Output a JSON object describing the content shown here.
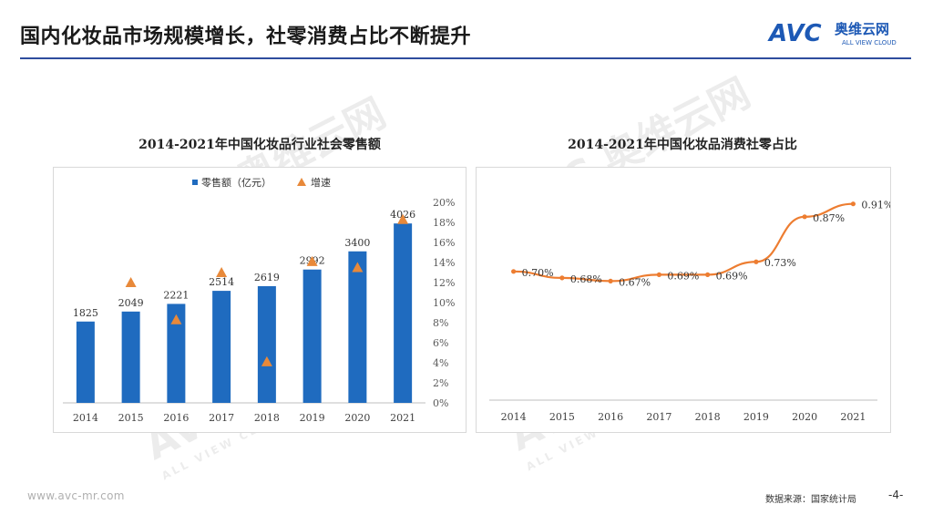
{
  "header": {
    "title": "国内化妆品市场规模增长，社零消费占比不断提升",
    "logo": {
      "mark": "AVC",
      "cn": "奥维云网",
      "en": "ALL VIEW CLOUD"
    }
  },
  "footer": {
    "url": "www.avc-mr.com",
    "source": "数据来源：国家统计局",
    "page": "-4-"
  },
  "watermark": {
    "text": "奥维云网",
    "sub": "ALL VIEW CLOUD",
    "mark": "AVC"
  },
  "colors": {
    "bar": "#1f6bbf",
    "marker": "#e8893a",
    "line": "#ed7d31",
    "rule": "#2e4d9e"
  },
  "chart_data": [
    {
      "type": "bar",
      "title": "2014-2021年中国化妆品行业社会零售额",
      "categories": [
        "2014",
        "2015",
        "2016",
        "2017",
        "2018",
        "2019",
        "2020",
        "2021"
      ],
      "series": [
        {
          "name": "零售额（亿元）",
          "type": "bar",
          "axis": "left",
          "values": [
            1825,
            2049,
            2221,
            2514,
            2619,
            2992,
            3400,
            4026
          ],
          "labels": [
            "1825",
            "2049",
            "2221",
            "2514",
            "2619",
            "2992",
            "3400",
            "4026"
          ]
        },
        {
          "name": "增速",
          "type": "scatter",
          "marker": "triangle",
          "axis": "right",
          "values": [
            null,
            12.0,
            8.3,
            13.0,
            4.1,
            14.1,
            13.5,
            18.3
          ]
        }
      ],
      "ylim_left": [
        0,
        4500
      ],
      "ylim_right": [
        0,
        20
      ],
      "right_ticks": [
        "0%",
        "2%",
        "4%",
        "6%",
        "8%",
        "10%",
        "12%",
        "14%",
        "16%",
        "18%",
        "20%"
      ],
      "legend": "top-left"
    },
    {
      "type": "line",
      "title": "2014-2021年中国化妆品消费社零占比",
      "categories": [
        "2014",
        "2015",
        "2016",
        "2017",
        "2018",
        "2019",
        "2020",
        "2021"
      ],
      "values": [
        0.7,
        0.68,
        0.67,
        0.69,
        0.69,
        0.73,
        0.87,
        0.91
      ],
      "labels": [
        "0.70%",
        "0.68%",
        "0.67%",
        "0.69%",
        "0.69%",
        "0.73%",
        "0.87%",
        "0.91%"
      ],
      "ylim": [
        0.3,
        0.98
      ]
    }
  ]
}
